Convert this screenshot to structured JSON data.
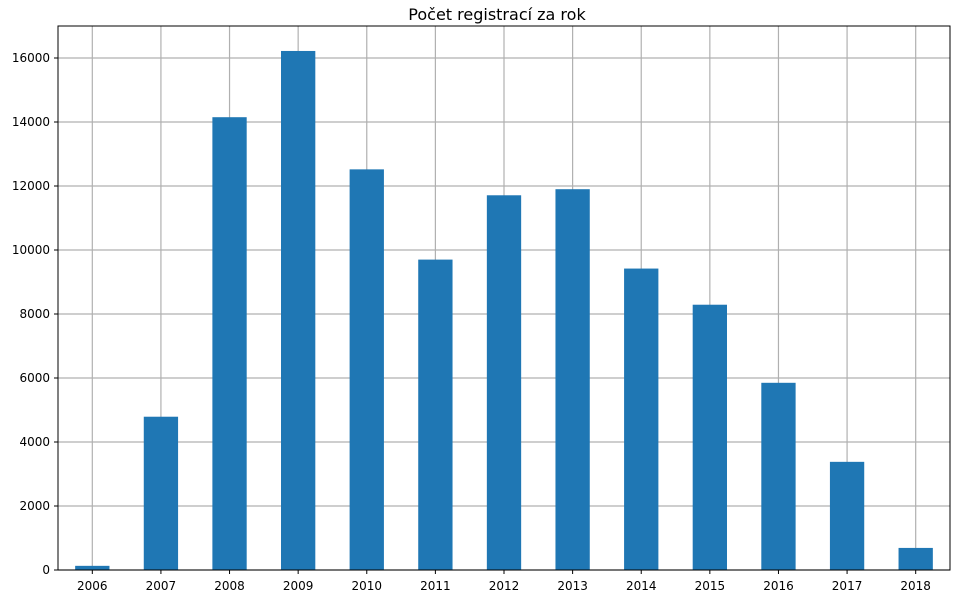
{
  "chart_data": {
    "type": "bar",
    "title": "Počet registrací za rok",
    "xlabel": "",
    "ylabel": "",
    "categories": [
      "2006",
      "2007",
      "2008",
      "2009",
      "2010",
      "2011",
      "2012",
      "2013",
      "2014",
      "2015",
      "2016",
      "2017",
      "2018"
    ],
    "values": [
      130,
      4790,
      14150,
      16220,
      12520,
      9700,
      11710,
      11900,
      9420,
      8290,
      5850,
      3380,
      690
    ],
    "ylim": [
      0,
      17000
    ],
    "yticks": [
      0,
      2000,
      4000,
      6000,
      8000,
      10000,
      12000,
      14000,
      16000
    ],
    "ytick_labels": [
      "0",
      "2000",
      "4000",
      "6000",
      "8000",
      "10000",
      "12000",
      "14000",
      "16000"
    ],
    "grid": true,
    "bar_color": "#1f77b4"
  }
}
